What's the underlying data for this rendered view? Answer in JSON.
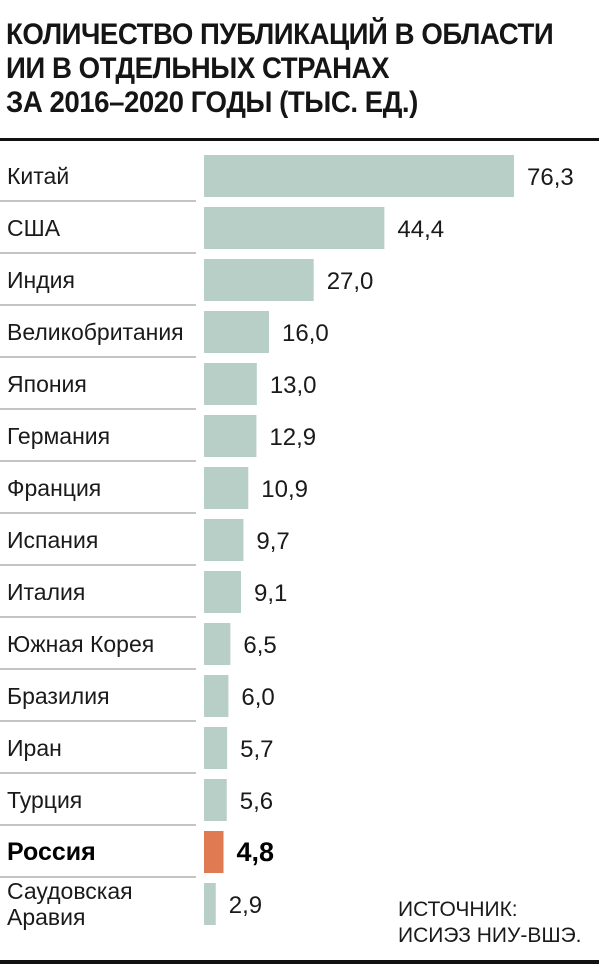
{
  "title_lines": [
    "КОЛИЧЕСТВО ПУБЛИКАЦИЙ В ОБЛАСТИ",
    "ИИ В ОТДЕЛЬНЫХ СТРАНАХ",
    "ЗА 2016–2020 ГОДЫ (ТЫС. ЕД.)"
  ],
  "source_lines": [
    "ИСТОЧНИК:",
    "ИСИЭЗ НИУ-ВШЭ."
  ],
  "colors": {
    "bar": "#b8cfc8",
    "highlight_bar": "#e07a52",
    "separator": "#8a8a8a",
    "rule": "#111111"
  },
  "chart_data": {
    "type": "bar",
    "orientation": "horizontal",
    "categories": [
      [
        "Китай"
      ],
      [
        "США"
      ],
      [
        "Индия"
      ],
      [
        "Великобритания"
      ],
      [
        "Япония"
      ],
      [
        "Германия"
      ],
      [
        "Франция"
      ],
      [
        "Испания"
      ],
      [
        "Италия"
      ],
      [
        "Южная Корея"
      ],
      [
        "Бразилия"
      ],
      [
        "Иран"
      ],
      [
        "Турция"
      ],
      [
        "Россия"
      ],
      [
        "Саудовская",
        "Аравия"
      ]
    ],
    "values": [
      76.3,
      44.4,
      27.0,
      16.0,
      13.0,
      12.9,
      10.9,
      9.7,
      9.1,
      6.5,
      6.0,
      5.7,
      5.6,
      4.8,
      2.9
    ],
    "value_labels": [
      "76,3",
      "44,4",
      "27,0",
      "16,0",
      "13,0",
      "12,9",
      "10,9",
      "9,7",
      "9,1",
      "6,5",
      "6,0",
      "5,7",
      "5,6",
      "4,8",
      "2,9"
    ],
    "highlight": "Россия",
    "grid": false,
    "legend": "none"
  }
}
